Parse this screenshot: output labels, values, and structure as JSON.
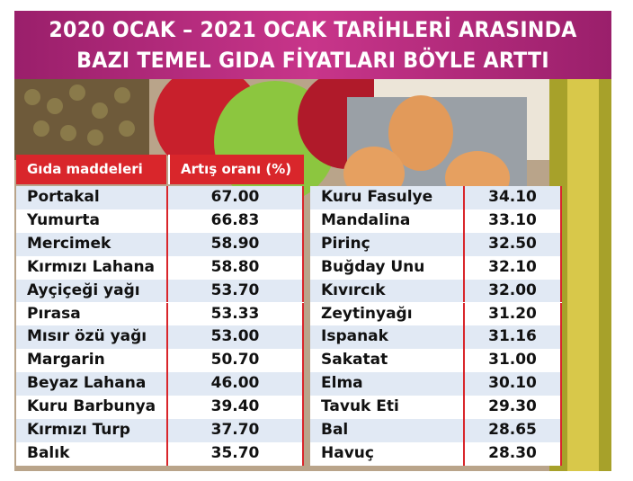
{
  "header": {
    "title": [
      "2020 OCAK – 2021 OCAK TARİHLERİ ARASINDA",
      "BAZI TEMEL GIDA FİYATLARI BÖYLE ARTTI"
    ]
  },
  "table": {
    "headers": [
      "Gıda maddeleri",
      "Artış oranı (%)"
    ],
    "rows": [
      [
        "Portakal",
        "67.00",
        "Kuru Fasulye",
        "34.10"
      ],
      [
        "Yumurta",
        "66.83",
        "Mandalina",
        "33.10"
      ],
      [
        "Mercimek",
        "58.90",
        "Pirinç",
        "32.50"
      ],
      [
        "Kırmızı Lahana",
        "58.80",
        "Buğday Unu",
        "32.10"
      ],
      [
        "Ayçiçeği yağı",
        "53.70",
        "Kıvırcık",
        "32.00"
      ],
      [
        "Pırasa",
        "53.33",
        "Zeytinyağı",
        "31.20"
      ],
      [
        "Mısır özü yağı",
        "53.00",
        "Ispanak",
        "31.16"
      ],
      [
        "Margarin",
        "50.70",
        "Sakatat",
        "31.00"
      ],
      [
        "Beyaz Lahana",
        "46.00",
        "Elma",
        "30.10"
      ],
      [
        "Kuru Barbunya",
        "39.40",
        "Tavuk Eti",
        "29.30"
      ],
      [
        "Kırmızı Turp",
        "37.70",
        "Bal",
        "28.65"
      ],
      [
        "Balık",
        "35.70",
        "Havuç",
        "28.30"
      ]
    ]
  }
}
